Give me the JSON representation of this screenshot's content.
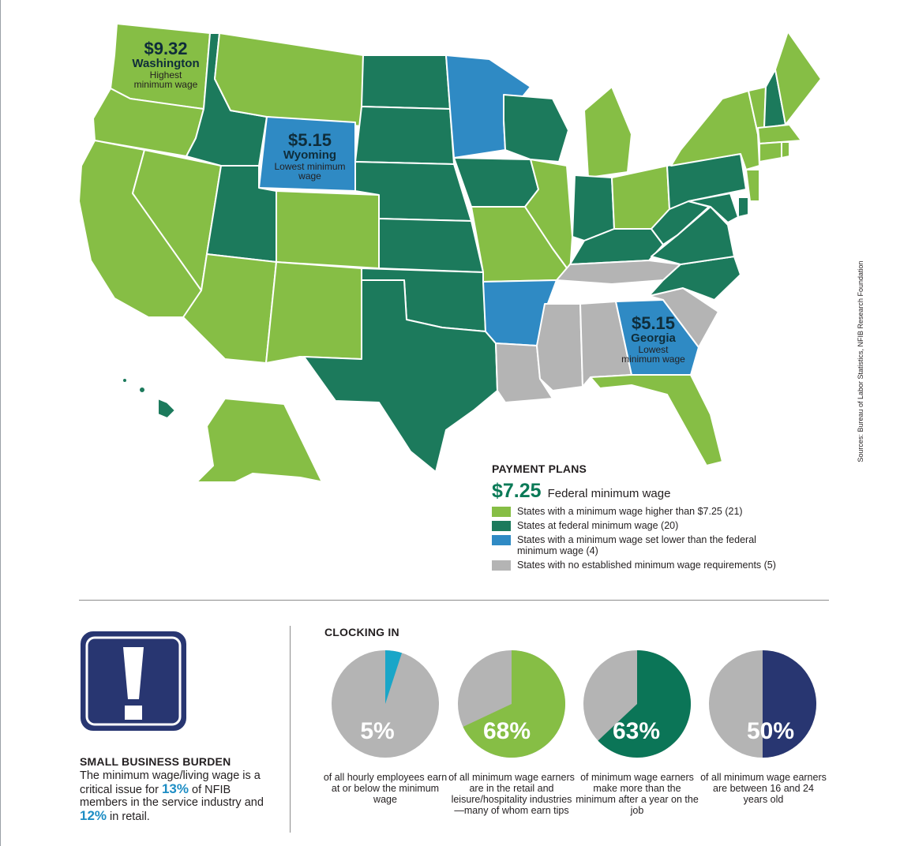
{
  "map_callouts": {
    "washington": {
      "amount": "$9.32",
      "state": "Washington",
      "note_line1": "Highest",
      "note_line2": "minimum wage"
    },
    "wyoming": {
      "amount": "$5.15",
      "state": "Wyoming",
      "note_line1": "Lowest minimum",
      "note_line2": "wage"
    },
    "georgia": {
      "amount": "$5.15",
      "state": "Georgia",
      "note_line1": "Lowest",
      "note_line2": "minimum wage"
    }
  },
  "legend": {
    "title": "PAYMENT PLANS",
    "federal_amount": "$7.25",
    "federal_label": "Federal minimum wage",
    "items": [
      {
        "label": "States with a minimum wage higher than $7.25 (21)",
        "color": "#86be45"
      },
      {
        "label": "States at federal minimum wage (20)",
        "color": "#1c7a5c"
      },
      {
        "label": "States with a minimum wage set lower than the federal minimum wage (4)",
        "color": "#2f8ac4"
      },
      {
        "label": "States with no established minimum wage requirements (5)",
        "color": "#b4b4b4"
      }
    ]
  },
  "source": "Sources: Bureau of Labor Statistics, NFIB Research Foundation",
  "burden": {
    "icon": "exclamation-icon",
    "title": "SMALL BUSINESS BURDEN",
    "text_a": "The minimum wage/living wage is a critical issue for ",
    "pct1": "13%",
    "text_b": " of NFIB members in the service industry and ",
    "pct2": "12%",
    "text_c": " in retail."
  },
  "clocking": {
    "title": "CLOCKING IN",
    "pies": [
      {
        "value": 5,
        "label": "5%",
        "caption": "of all hourly employees earn at or below the minimum wage",
        "color": "#1aa6c8"
      },
      {
        "value": 68,
        "label": "68%",
        "caption": "of all minimum wage earners are in the retail and leisure/hospitality industries—many of whom earn tips",
        "color": "#86be45"
      },
      {
        "value": 63,
        "label": "63%",
        "caption": "of minimum wage earners make more than the minimum after a year on the job",
        "color": "#0b7557"
      },
      {
        "value": 50,
        "label": "50%",
        "caption": "of all minimum wage earners are between 16 and 24 years old",
        "color": "#283671"
      }
    ]
  },
  "colors": {
    "higher": "#86be45",
    "federal": "#1c7a5c",
    "lower": "#2f8ac4",
    "none": "#b4b4b4",
    "pie_base": "#b4b4b4"
  },
  "map_states": {
    "WA": "higher",
    "OR": "higher",
    "CA": "higher",
    "NV": "higher",
    "AZ": "higher",
    "MT": "higher",
    "CO": "higher",
    "NM": "higher",
    "MO": "higher",
    "IL": "higher",
    "MI": "higher",
    "OH": "higher",
    "FL": "higher",
    "AK": "higher",
    "ME": "higher",
    "VT": "higher",
    "NY": "higher",
    "MA": "higher",
    "CT": "higher",
    "RI": "higher",
    "NJ": "higher",
    "ID": "federal",
    "UT": "federal",
    "ND": "federal",
    "SD": "federal",
    "NE": "federal",
    "KS": "federal",
    "OK": "federal",
    "TX": "federal",
    "IA": "federal",
    "WI": "federal",
    "IN": "federal",
    "KY": "federal",
    "WV": "federal",
    "VA": "federal",
    "NC": "federal",
    "PA": "federal",
    "NH": "federal",
    "MD": "federal",
    "DE": "federal",
    "HI": "federal",
    "WY": "lower",
    "MN": "lower",
    "AR": "lower",
    "GA": "lower",
    "TN": "none",
    "MS": "none",
    "AL": "none",
    "SC": "none",
    "LA": "none"
  }
}
